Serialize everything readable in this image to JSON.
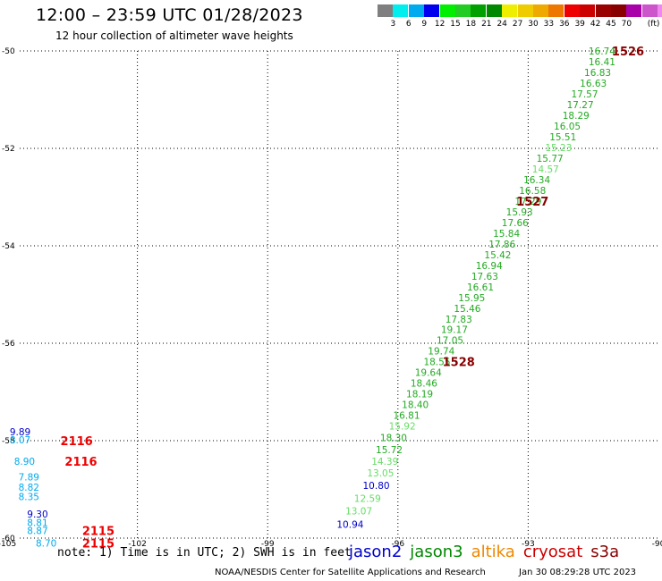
{
  "header": {
    "title": "12:00 – 23:59 UTC 01/28/2023",
    "subtitle": "12 hour collection of altimeter wave heights"
  },
  "colorbar": {
    "colors": [
      "#7f7f7f",
      "#00eeee",
      "#00aaee",
      "#0000ee",
      "#00ee00",
      "#22cc22",
      "#00a000",
      "#008800",
      "#eeee00",
      "#eecc00",
      "#eeaa00",
      "#ee7700",
      "#ee0000",
      "#cc0000",
      "#990000",
      "#880000",
      "#aa00aa",
      "#cc55cc",
      "#ee88ee",
      "#000000"
    ],
    "labels": [
      "3",
      "6",
      "9",
      "12",
      "15",
      "18",
      "21",
      "24",
      "27",
      "30",
      "33",
      "36",
      "39",
      "42",
      "45",
      "70"
    ],
    "unit": "(ft)"
  },
  "axes": {
    "x_ticks": [
      "-105",
      "-102",
      "-99",
      "-96",
      "-93",
      "-90"
    ],
    "y_ticks": [
      "-50",
      "-52",
      "-54",
      "-56",
      "-58",
      "-60"
    ]
  },
  "note": "note: 1) Time is in UTC; 2) SWH is in feet",
  "missions": [
    {
      "name": "jason2",
      "color": "#0000cc"
    },
    {
      "name": "jason3",
      "color": "#008800"
    },
    {
      "name": "altika",
      "color": "#ee8800"
    },
    {
      "name": "cryosat",
      "color": "#cc0000"
    },
    {
      "name": "s3a",
      "color": "#880000"
    }
  ],
  "footer": {
    "left": "NOAA/NESDIS Center for Satellite Applications and Research",
    "right": "Jan 30 08:29:28 UTC 2023"
  },
  "chart_data": {
    "type": "scatter",
    "xlim": [
      -105,
      -90
    ],
    "ylim": [
      -60,
      -50
    ],
    "grid": true,
    "points": [
      {
        "lon": -91.3,
        "lat": -50.0,
        "value": "16.74",
        "color": "#22aa22"
      },
      {
        "lon": -91.3,
        "lat": -50.22,
        "value": "16.41",
        "color": "#22aa22"
      },
      {
        "lon": -91.4,
        "lat": -50.44,
        "value": "16.83",
        "color": "#22aa22"
      },
      {
        "lon": -91.5,
        "lat": -50.66,
        "value": "16.63",
        "color": "#22aa22"
      },
      {
        "lon": -91.7,
        "lat": -50.88,
        "value": "17.57",
        "color": "#22aa22"
      },
      {
        "lon": -91.8,
        "lat": -51.1,
        "value": "17.27",
        "color": "#22aa22"
      },
      {
        "lon": -91.9,
        "lat": -51.32,
        "value": "18.29",
        "color": "#22aa22"
      },
      {
        "lon": -92.1,
        "lat": -51.54,
        "value": "16.05",
        "color": "#22aa22"
      },
      {
        "lon": -92.2,
        "lat": -51.76,
        "value": "15.51",
        "color": "#22aa22"
      },
      {
        "lon": -92.3,
        "lat": -51.98,
        "value": "15.23",
        "color": "#66dd66"
      },
      {
        "lon": -92.5,
        "lat": -52.2,
        "value": "15.77",
        "color": "#22aa22"
      },
      {
        "lon": -92.6,
        "lat": -52.42,
        "value": "14.57",
        "color": "#66dd66"
      },
      {
        "lon": -92.8,
        "lat": -52.64,
        "value": "16.34",
        "color": "#22aa22"
      },
      {
        "lon": -92.9,
        "lat": -52.86,
        "value": "16.58",
        "color": "#22aa22"
      },
      {
        "lon": -93.0,
        "lat": -53.08,
        "value": "17.29",
        "color": "#22aa22"
      },
      {
        "lon": -93.2,
        "lat": -53.3,
        "value": "15.93",
        "color": "#22aa22"
      },
      {
        "lon": -93.3,
        "lat": -53.52,
        "value": "17.66",
        "color": "#22aa22"
      },
      {
        "lon": -93.5,
        "lat": -53.74,
        "value": "15.84",
        "color": "#22aa22"
      },
      {
        "lon": -93.6,
        "lat": -53.96,
        "value": "17.86",
        "color": "#22aa22"
      },
      {
        "lon": -93.7,
        "lat": -54.18,
        "value": "15.42",
        "color": "#22aa22"
      },
      {
        "lon": -93.9,
        "lat": -54.4,
        "value": "16.94",
        "color": "#22aa22"
      },
      {
        "lon": -94.0,
        "lat": -54.62,
        "value": "17.63",
        "color": "#22aa22"
      },
      {
        "lon": -94.1,
        "lat": -54.84,
        "value": "16.61",
        "color": "#22aa22"
      },
      {
        "lon": -94.3,
        "lat": -55.06,
        "value": "15.95",
        "color": "#22aa22"
      },
      {
        "lon": -94.4,
        "lat": -55.28,
        "value": "15.46",
        "color": "#22aa22"
      },
      {
        "lon": -94.6,
        "lat": -55.5,
        "value": "17.83",
        "color": "#22aa22"
      },
      {
        "lon": -94.7,
        "lat": -55.72,
        "value": "19.17",
        "color": "#22aa22"
      },
      {
        "lon": -94.8,
        "lat": -55.94,
        "value": "17.05",
        "color": "#22aa22"
      },
      {
        "lon": -95.0,
        "lat": -56.16,
        "value": "19.74",
        "color": "#22aa22"
      },
      {
        "lon": -95.1,
        "lat": -56.38,
        "value": "18.55",
        "color": "#22aa22"
      },
      {
        "lon": -95.3,
        "lat": -56.6,
        "value": "19.64",
        "color": "#22aa22"
      },
      {
        "lon": -95.4,
        "lat": -56.82,
        "value": "18.46",
        "color": "#22aa22"
      },
      {
        "lon": -95.5,
        "lat": -57.04,
        "value": "18.19",
        "color": "#22aa22"
      },
      {
        "lon": -95.6,
        "lat": -57.26,
        "value": "18.40",
        "color": "#22aa22"
      },
      {
        "lon": -95.8,
        "lat": -57.48,
        "value": "16.81",
        "color": "#22aa22"
      },
      {
        "lon": -95.9,
        "lat": -57.7,
        "value": "15.92",
        "color": "#66dd66"
      },
      {
        "lon": -96.1,
        "lat": -57.94,
        "value": "18.30",
        "color": "#22aa22"
      },
      {
        "lon": -96.2,
        "lat": -58.18,
        "value": "15.72",
        "color": "#22aa22"
      },
      {
        "lon": -96.3,
        "lat": -58.42,
        "value": "14.39",
        "color": "#66dd66"
      },
      {
        "lon": -96.4,
        "lat": -58.66,
        "value": "13.05",
        "color": "#66dd66"
      },
      {
        "lon": -96.5,
        "lat": -58.92,
        "value": "10.80",
        "color": "#0000cc"
      },
      {
        "lon": -96.7,
        "lat": -59.18,
        "value": "12.59",
        "color": "#66dd66"
      },
      {
        "lon": -96.9,
        "lat": -59.44,
        "value": "13.07",
        "color": "#66dd66"
      },
      {
        "lon": -97.1,
        "lat": -59.72,
        "value": "10.94",
        "color": "#0000cc"
      },
      {
        "lon": -104.7,
        "lat": -57.82,
        "value": "9.89",
        "color": "#0000cc"
      },
      {
        "lon": -104.7,
        "lat": -57.98,
        "value": "8.07",
        "color": "#00aaee"
      },
      {
        "lon": -104.6,
        "lat": -58.42,
        "value": "8.90",
        "color": "#00aaee"
      },
      {
        "lon": -104.5,
        "lat": -58.74,
        "value": "7.89",
        "color": "#00aaee"
      },
      {
        "lon": -104.5,
        "lat": -58.95,
        "value": "8.82",
        "color": "#00aaee"
      },
      {
        "lon": -104.5,
        "lat": -59.15,
        "value": "8.35",
        "color": "#00aaee"
      },
      {
        "lon": -104.3,
        "lat": -59.5,
        "value": "9.30",
        "color": "#0000cc"
      },
      {
        "lon": -104.3,
        "lat": -59.68,
        "value": "8.81",
        "color": "#00aaee"
      },
      {
        "lon": -104.3,
        "lat": -59.84,
        "value": "8.87",
        "color": "#00aaee"
      },
      {
        "lon": -104.1,
        "lat": -60.1,
        "value": "8.70",
        "color": "#00aaee"
      }
    ],
    "time_labels": [
      {
        "lon": -90.7,
        "lat": -50.0,
        "text": "1526",
        "color": "#880000"
      },
      {
        "lon": -92.9,
        "lat": -53.08,
        "text": "1527",
        "color": "#880000"
      },
      {
        "lon": -94.6,
        "lat": -56.38,
        "text": "1528",
        "color": "#880000"
      },
      {
        "lon": -103.4,
        "lat": -58.0,
        "text": "2116",
        "color": "#ee0000"
      },
      {
        "lon": -103.3,
        "lat": -58.42,
        "text": "2116",
        "color": "#ee0000"
      },
      {
        "lon": -102.9,
        "lat": -59.84,
        "text": "2115",
        "color": "#ee0000"
      },
      {
        "lon": -102.9,
        "lat": -60.1,
        "text": "2115",
        "color": "#ee0000"
      }
    ]
  }
}
